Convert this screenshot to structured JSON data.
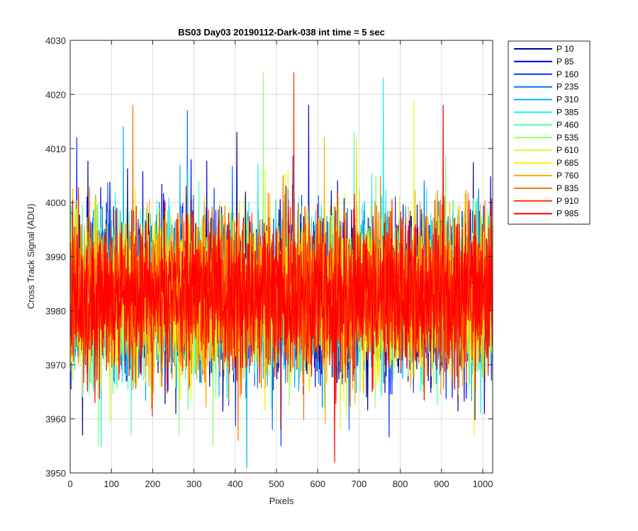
{
  "chart_data": {
    "type": "line",
    "title": "BS03 Day03 20190112-Dark-038 int time = 5 sec",
    "xlabel": "Pixels",
    "ylabel": "Cross Track Signal (ADU)",
    "xlim": [
      0,
      1024
    ],
    "ylim": [
      3950,
      4030
    ],
    "xticks": [
      0,
      100,
      200,
      300,
      400,
      500,
      600,
      700,
      800,
      900,
      1000
    ],
    "yticks": [
      3950,
      3960,
      3970,
      3980,
      3990,
      4000,
      4010,
      4020,
      4030
    ],
    "grid": true,
    "legend_position": "outside-top-right",
    "noise_model": {
      "mean": 3983,
      "std": 7,
      "points_per_series": 1024
    },
    "series": [
      {
        "name": "P 10",
        "color": "#00008f",
        "mean": 3983,
        "peak_max": 4013,
        "peak_min": 3957
      },
      {
        "name": "P 85",
        "color": "#0000df",
        "mean": 3983,
        "peak_max": 4018,
        "peak_min": 3961
      },
      {
        "name": "P 160",
        "color": "#0030ff",
        "mean": 3983,
        "peak_max": 4012,
        "peak_min": 3955
      },
      {
        "name": "P 235",
        "color": "#0070ff",
        "mean": 3983,
        "peak_max": 4017,
        "peak_min": 3958
      },
      {
        "name": "P 310",
        "color": "#00b0ff",
        "mean": 3983,
        "peak_max": 4014,
        "peak_min": 3951
      },
      {
        "name": "P 385",
        "color": "#10efef",
        "mean": 3983,
        "peak_max": 4023,
        "peak_min": 3955
      },
      {
        "name": "P 460",
        "color": "#50ffaf",
        "mean": 3983,
        "peak_max": 4013,
        "peak_min": 3957
      },
      {
        "name": "P 535",
        "color": "#8fff70",
        "mean": 3983,
        "peak_max": 4024,
        "peak_min": 3955
      },
      {
        "name": "P 610",
        "color": "#cfff30",
        "mean": 3983,
        "peak_max": 4019,
        "peak_min": 3958
      },
      {
        "name": "P 685",
        "color": "#ffef00",
        "mean": 3983,
        "peak_max": 4012,
        "peak_min": 3957
      },
      {
        "name": "P 760",
        "color": "#ffaf00",
        "mean": 3983,
        "peak_max": 4012,
        "peak_min": 3959
      },
      {
        "name": "P 835",
        "color": "#ff7000",
        "mean": 3983,
        "peak_max": 4018,
        "peak_min": 3956
      },
      {
        "name": "P 910",
        "color": "#ff3000",
        "mean": 3983,
        "peak_max": 4024,
        "peak_min": 3958
      },
      {
        "name": "P 985",
        "color": "#ff0000",
        "mean": 3983,
        "peak_max": 4018,
        "peak_min": 3952
      }
    ]
  }
}
